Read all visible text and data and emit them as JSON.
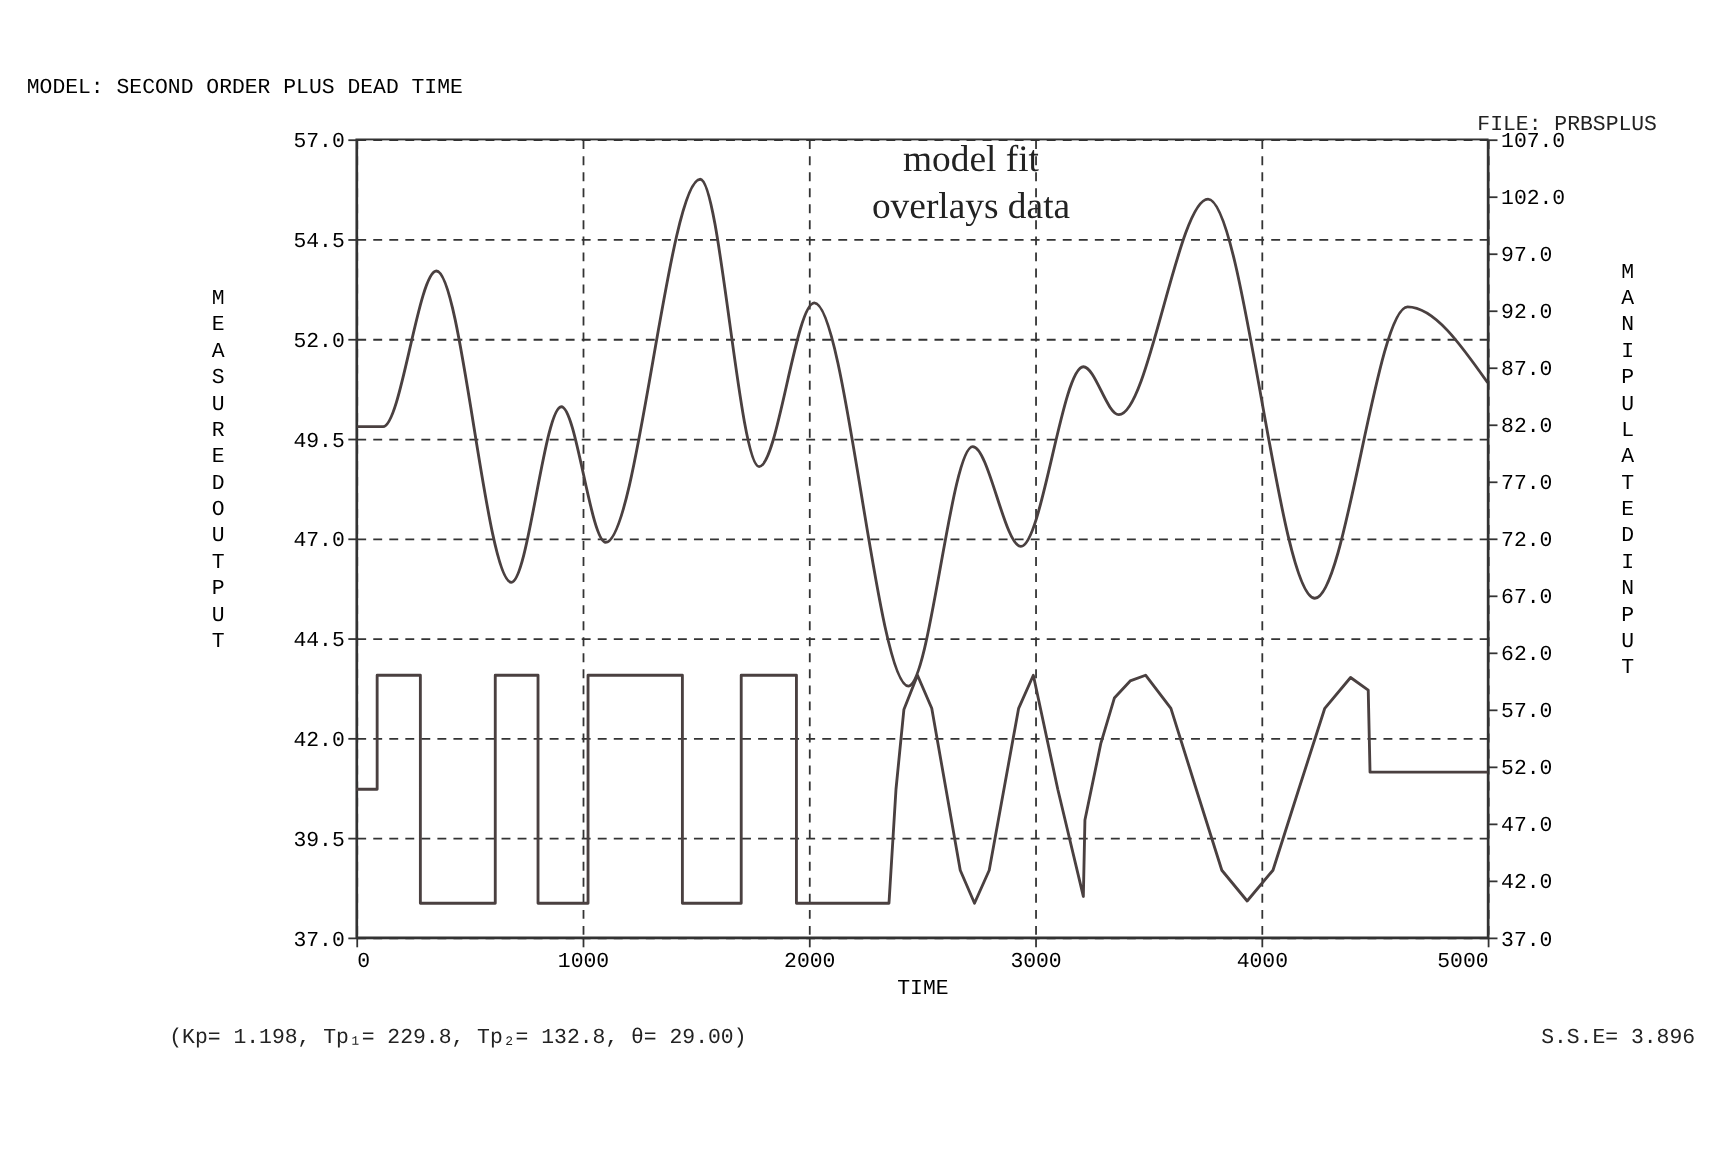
{
  "chart_data": {
    "type": "line",
    "title": "MODEL: SECOND ORDER PLUS DEAD TIME",
    "xlabel": "TIME",
    "ylabel": "MEASURED OUTPUT",
    "y2label": "MANIPULATED INPUT",
    "annotations": [
      "FILE: PRBSPLUS",
      "model fit overlays data",
      "(Kp=   1.198, Tp₁=   229.8, Tp₂=   132.8, θ=    29.00)",
      "S.S.E=   3.896"
    ],
    "series": [
      {
        "color": "#4a4040",
        "x": [
          0,
          118,
          354,
          685,
          906,
          1102,
          1520,
          1780,
          2024,
          2440,
          2724,
          2937,
          3213,
          3370,
          3764,
          4236,
          4646,
          5000
        ],
        "values": [
          49.8,
          49.8,
          53.7,
          45.9,
          50.3,
          46.9,
          56.0,
          48.8,
          52.9,
          43.3,
          49.3,
          46.8,
          51.3,
          50.1,
          55.5,
          45.5,
          52.8,
          50.9
        ]
      },
      {
        "axis": "y2",
        "color": "#4a4040",
        "x": [
          0,
          92,
          92,
          283,
          283,
          614,
          614,
          803,
          803,
          1024,
          1024,
          1441,
          1441,
          1701,
          1701,
          1945,
          1945,
          2354,
          2385,
          2420,
          2480,
          2543,
          2606,
          2669,
          2732,
          2797,
          2862,
          2927,
          2992,
          3100,
          3213,
          3220,
          3290,
          3350,
          3420,
          3488,
          3600,
          3712,
          3825,
          3937,
          4051,
          4165,
          4280,
          4394,
          4472,
          4480,
          5000
        ],
        "values": [
          50,
          50,
          60,
          60,
          40,
          40,
          60,
          60,
          40,
          40,
          60,
          60,
          40,
          40,
          60,
          60,
          40,
          40,
          50,
          57,
          60,
          57.1,
          50,
          42.9,
          40,
          42.9,
          50,
          57.1,
          60,
          50,
          40.6,
          47.3,
          54,
          58,
          59.5,
          60,
          57.1,
          50,
          42.9,
          40.2,
          42.9,
          50,
          57.1,
          59.8,
          58.7,
          51.5,
          51.5
        ]
      }
    ],
    "xlim": [
      0,
      5000
    ],
    "xticks": [
      0,
      1000,
      2000,
      3000,
      4000,
      5000
    ],
    "ylim": [
      37,
      57
    ],
    "yticks": [
      {
        "value": 37,
        "label": "37.0"
      },
      {
        "value": 39.5,
        "label": "39.5"
      },
      {
        "value": 42,
        "label": "42.0"
      },
      {
        "value": 44.5,
        "label": "44.5"
      },
      {
        "value": 47,
        "label": "47.0"
      },
      {
        "value": 49.5,
        "label": "49.5"
      },
      {
        "value": 52,
        "label": "52.0"
      },
      {
        "value": 54.5,
        "label": "54.5"
      },
      {
        "value": 57,
        "label": "57.0"
      }
    ],
    "y2lim": [
      37,
      107
    ],
    "y2ticks": [
      {
        "value": 37,
        "label": "37.0"
      },
      {
        "value": 42,
        "label": "42.0"
      },
      {
        "value": 47,
        "label": "47.0"
      },
      {
        "value": 52,
        "label": "52.0"
      },
      {
        "value": 57,
        "label": "57.0"
      },
      {
        "value": 62,
        "label": "62.0"
      },
      {
        "value": 67,
        "label": "67.0"
      },
      {
        "value": 72,
        "label": "72.0"
      },
      {
        "value": 77,
        "label": "77.0"
      },
      {
        "value": 82,
        "label": "82.0"
      },
      {
        "value": 87,
        "label": "87.0"
      },
      {
        "value": 92,
        "label": "92.0"
      },
      {
        "value": 97,
        "label": "97.0"
      },
      {
        "value": 102,
        "label": "102.0"
      },
      {
        "value": 107,
        "label": "107.0"
      }
    ],
    "grid": true,
    "line_style": "solid"
  }
}
